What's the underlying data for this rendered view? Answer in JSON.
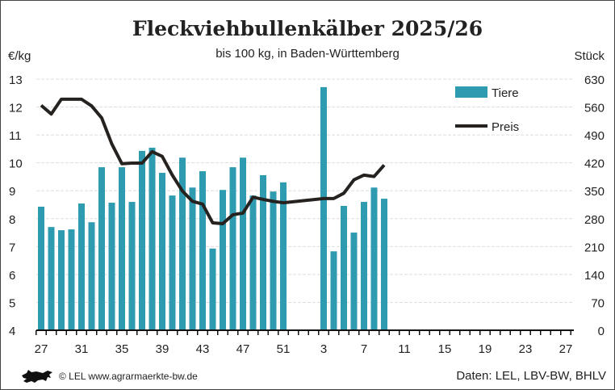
{
  "chart_data": {
    "type": "bar+line",
    "title": "Fleckviehbullenkälber 2025/26",
    "subtitle": "bis 100 kg, in Baden-Württemberg",
    "ylabel_left": "€/kg",
    "ylabel_right": "Stück",
    "ylim_left": [
      4,
      13
    ],
    "ylim_right": [
      0,
      630
    ],
    "yticks_left": [
      "4",
      "5",
      "6",
      "7",
      "8",
      "9",
      "10",
      "11",
      "12",
      "13"
    ],
    "yticks_right": [
      "0",
      "70",
      "140",
      "210",
      "280",
      "350",
      "420",
      "490",
      "560",
      "630"
    ],
    "grid": true,
    "legend_position": "top-right",
    "x_weeks": [
      27,
      28,
      29,
      30,
      31,
      32,
      33,
      34,
      35,
      36,
      37,
      38,
      39,
      40,
      41,
      42,
      43,
      44,
      45,
      46,
      47,
      48,
      49,
      50,
      51,
      52,
      1,
      2,
      3,
      4,
      5,
      6,
      7,
      8,
      9,
      10,
      11,
      12,
      13,
      14,
      15,
      16,
      17,
      18,
      19,
      20,
      21,
      22,
      23,
      24,
      25,
      26,
      27
    ],
    "xtick_labels": [
      "27",
      "31",
      "35",
      "39",
      "43",
      "47",
      "51",
      "3",
      "7",
      "11",
      "15",
      "19",
      "23",
      "27"
    ],
    "series": [
      {
        "name": "Tiere",
        "type": "bar",
        "axis": "right",
        "color": "#2e9bb0",
        "values": [
          310,
          259,
          251,
          253,
          318,
          271,
          409,
          320,
          409,
          322,
          450,
          458,
          395,
          338,
          433,
          358,
          399,
          205,
          352,
          409,
          433,
          338,
          389,
          348,
          371,
          null,
          null,
          null,
          610,
          198,
          312,
          245,
          322,
          358,
          330
        ]
      },
      {
        "name": "Preis",
        "type": "line",
        "axis": "left",
        "color": "#252220",
        "values": [
          12.06,
          11.75,
          12.28,
          12.28,
          12.28,
          12.04,
          11.61,
          10.68,
          9.97,
          9.99,
          9.99,
          10.4,
          10.23,
          9.56,
          8.99,
          8.62,
          8.52,
          7.85,
          7.82,
          8.14,
          8.2,
          8.77,
          8.69,
          8.62,
          8.57,
          null,
          null,
          null,
          8.72,
          8.72,
          8.91,
          9.39,
          9.56,
          9.51,
          9.92
        ]
      }
    ]
  },
  "footer": {
    "copyright": "© LEL www.agrarmaerkte-bw.de",
    "source": "Daten: LEL, LBV-BW, BHLV"
  }
}
